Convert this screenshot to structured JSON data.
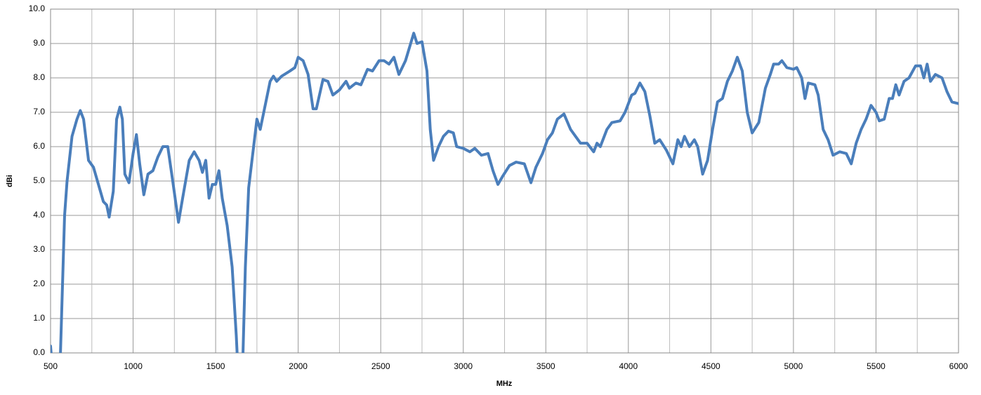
{
  "chart_data": {
    "type": "line",
    "x_label": "MHz",
    "y_label": "dBi",
    "xlim": [
      500,
      6000
    ],
    "ylim": [
      0,
      10
    ],
    "xticks": [
      500,
      1000,
      1500,
      2000,
      2500,
      3000,
      3500,
      4000,
      4500,
      5000,
      5500,
      6000
    ],
    "xminorticks": [
      750,
      1250,
      1750,
      2250,
      2750,
      3250,
      3750,
      4250,
      4750,
      5250,
      5750
    ],
    "yticks": [
      {
        "value": 0,
        "label": "0.0"
      },
      {
        "value": 1,
        "label": "1.0"
      },
      {
        "value": 2,
        "label": "2.0"
      },
      {
        "value": 3,
        "label": "3.0"
      },
      {
        "value": 4,
        "label": "4.0"
      },
      {
        "value": 5,
        "label": "5.0"
      },
      {
        "value": 6,
        "label": "6.0"
      },
      {
        "value": 7,
        "label": "7.0"
      },
      {
        "value": 8,
        "label": "8.0"
      },
      {
        "value": 9,
        "label": "9.0"
      },
      {
        "value": 10,
        "label": "10.0"
      }
    ],
    "grid": true,
    "series": [
      {
        "color": "#4a7ebb",
        "x": [
          500,
          520,
          555,
          560,
          585,
          600,
          630,
          660,
          680,
          700,
          730,
          760,
          790,
          820,
          840,
          855,
          880,
          900,
          920,
          935,
          950,
          975,
          1000,
          1020,
          1040,
          1065,
          1090,
          1120,
          1150,
          1180,
          1210,
          1240,
          1275,
          1300,
          1340,
          1370,
          1400,
          1420,
          1440,
          1460,
          1480,
          1500,
          1520,
          1540,
          1570,
          1600,
          1625,
          1640,
          1660,
          1680,
          1700,
          1730,
          1750,
          1770,
          1800,
          1830,
          1850,
          1870,
          1900,
          1950,
          1980,
          2000,
          2030,
          2060,
          2090,
          2110,
          2150,
          2180,
          2210,
          2250,
          2290,
          2310,
          2350,
          2380,
          2420,
          2450,
          2490,
          2520,
          2550,
          2580,
          2610,
          2650,
          2700,
          2720,
          2750,
          2780,
          2800,
          2820,
          2850,
          2880,
          2910,
          2940,
          2960,
          3000,
          3040,
          3070,
          3110,
          3150,
          3180,
          3210,
          3240,
          3280,
          3320,
          3370,
          3410,
          3440,
          3480,
          3510,
          3540,
          3570,
          3610,
          3650,
          3680,
          3710,
          3750,
          3790,
          3810,
          3830,
          3870,
          3900,
          3950,
          3980,
          4020,
          4040,
          4070,
          4100,
          4130,
          4160,
          4190,
          4230,
          4270,
          4300,
          4320,
          4340,
          4370,
          4400,
          4420,
          4450,
          4480,
          4510,
          4540,
          4570,
          4600,
          4630,
          4660,
          4690,
          4720,
          4750,
          4790,
          4830,
          4860,
          4880,
          4910,
          4930,
          4960,
          5000,
          5020,
          5050,
          5070,
          5090,
          5130,
          5150,
          5180,
          5210,
          5240,
          5280,
          5320,
          5350,
          5380,
          5410,
          5440,
          5470,
          5500,
          5520,
          5550,
          5580,
          5600,
          5620,
          5640,
          5670,
          5700,
          5740,
          5770,
          5790,
          5810,
          5830,
          5860,
          5880,
          5900,
          5930,
          5960,
          6000
        ],
        "values": [
          0.2,
          -1,
          -1,
          0.0,
          4.0,
          5.0,
          6.3,
          6.8,
          7.05,
          6.8,
          5.6,
          5.4,
          4.9,
          4.4,
          4.3,
          3.95,
          4.7,
          6.8,
          7.15,
          6.8,
          5.2,
          4.95,
          5.8,
          6.35,
          5.5,
          4.6,
          5.2,
          5.3,
          5.7,
          6.0,
          6.0,
          5.0,
          3.8,
          4.5,
          5.6,
          5.85,
          5.6,
          5.25,
          5.6,
          4.5,
          4.9,
          4.9,
          5.3,
          4.5,
          3.7,
          2.5,
          0.5,
          -1,
          -1,
          2.5,
          4.8,
          6.0,
          6.8,
          6.5,
          7.2,
          7.9,
          8.05,
          7.9,
          8.05,
          8.2,
          8.3,
          8.6,
          8.5,
          8.1,
          7.1,
          7.1,
          7.95,
          7.9,
          7.5,
          7.65,
          7.9,
          7.7,
          7.85,
          7.8,
          8.25,
          8.2,
          8.5,
          8.5,
          8.4,
          8.6,
          8.1,
          8.5,
          9.3,
          9.0,
          9.05,
          8.2,
          6.5,
          5.6,
          6.0,
          6.3,
          6.45,
          6.4,
          6.0,
          5.95,
          5.85,
          5.95,
          5.75,
          5.8,
          5.3,
          4.9,
          5.15,
          5.45,
          5.55,
          5.5,
          4.95,
          5.4,
          5.8,
          6.2,
          6.4,
          6.8,
          6.95,
          6.5,
          6.3,
          6.1,
          6.1,
          5.85,
          6.1,
          6.0,
          6.5,
          6.7,
          6.75,
          7.0,
          7.5,
          7.55,
          7.85,
          7.6,
          6.9,
          6.1,
          6.2,
          5.9,
          5.5,
          6.2,
          6.0,
          6.3,
          6.0,
          6.2,
          6.0,
          5.2,
          5.6,
          6.5,
          7.3,
          7.4,
          7.9,
          8.2,
          8.6,
          8.2,
          7.0,
          6.4,
          6.7,
          7.7,
          8.1,
          8.4,
          8.4,
          8.5,
          8.3,
          8.25,
          8.3,
          8.0,
          7.4,
          7.85,
          7.8,
          7.5,
          6.5,
          6.2,
          5.75,
          5.85,
          5.8,
          5.5,
          6.1,
          6.5,
          6.8,
          7.2,
          7.0,
          6.75,
          6.8,
          7.4,
          7.4,
          7.8,
          7.5,
          7.9,
          8.0,
          8.35,
          8.35,
          8.0,
          8.4,
          7.9,
          8.1,
          8.05,
          8.0,
          7.6,
          7.3,
          7.25
        ]
      }
    ]
  }
}
